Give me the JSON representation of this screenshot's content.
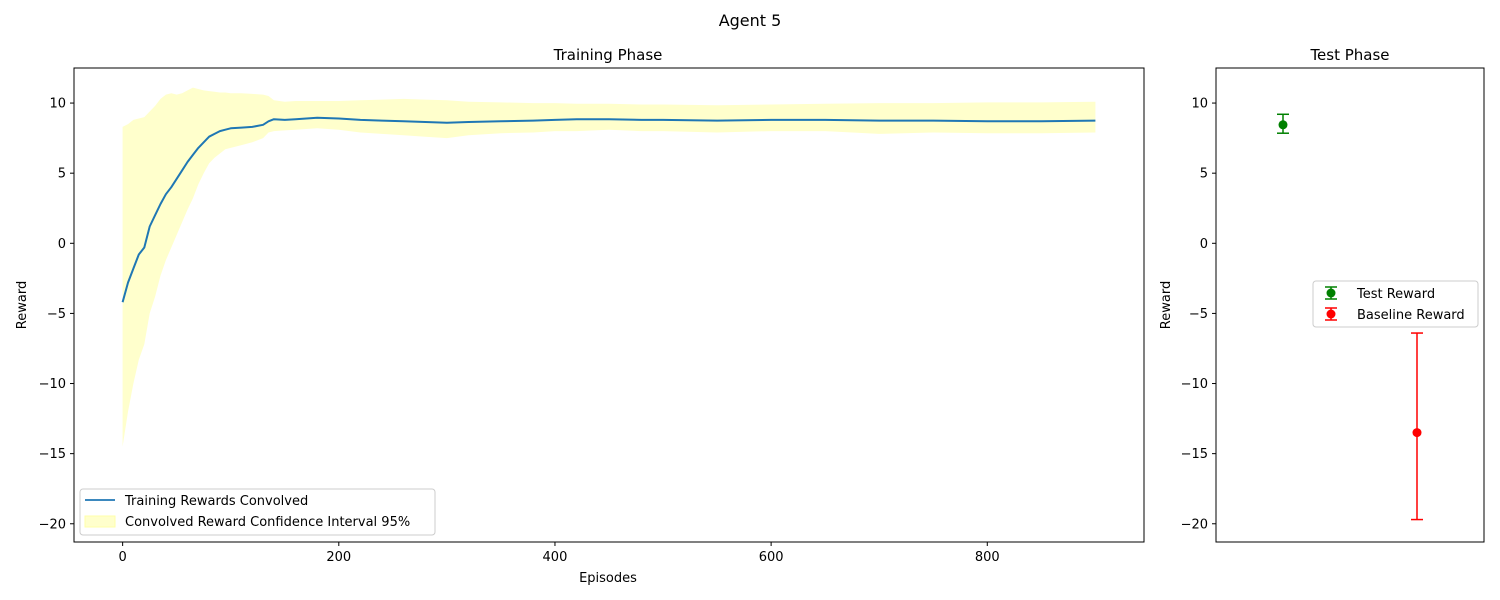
{
  "figure_title": "Agent 5",
  "chart_data": [
    {
      "type": "line",
      "title": "Training Phase",
      "xlabel": "Episodes",
      "ylabel": "Reward",
      "xlim": [
        -45,
        945
      ],
      "ylim": [
        -21.3,
        12.5
      ],
      "xticks": [
        0,
        200,
        400,
        600,
        800
      ],
      "yticks": [
        -20,
        -15,
        -10,
        -5,
        0,
        5,
        10
      ],
      "legend_position": "bottom-left",
      "series": [
        {
          "name": "Training Rewards Convolved",
          "color": "#1f77b4",
          "x": [
            0,
            5,
            10,
            15,
            20,
            25,
            30,
            35,
            40,
            45,
            50,
            55,
            60,
            65,
            70,
            75,
            80,
            85,
            90,
            95,
            100,
            110,
            120,
            130,
            135,
            140,
            150,
            160,
            170,
            180,
            200,
            220,
            240,
            260,
            280,
            300,
            320,
            350,
            380,
            400,
            420,
            450,
            480,
            500,
            550,
            600,
            650,
            700,
            750,
            800,
            850,
            900
          ],
          "y": [
            -4.2,
            -2.8,
            -1.8,
            -0.8,
            -0.3,
            1.2,
            2.0,
            2.8,
            3.5,
            4.0,
            4.6,
            5.2,
            5.8,
            6.3,
            6.8,
            7.2,
            7.6,
            7.8,
            8.0,
            8.1,
            8.2,
            8.25,
            8.3,
            8.45,
            8.7,
            8.85,
            8.8,
            8.85,
            8.9,
            8.95,
            8.9,
            8.8,
            8.75,
            8.7,
            8.65,
            8.6,
            8.65,
            8.7,
            8.75,
            8.8,
            8.85,
            8.85,
            8.8,
            8.8,
            8.75,
            8.8,
            8.8,
            8.75,
            8.75,
            8.7,
            8.7,
            8.75
          ]
        },
        {
          "name": "Convolved Reward Confidence Interval 95%",
          "type": "area",
          "color": "#ffffcc",
          "x": [
            0,
            5,
            10,
            15,
            20,
            25,
            30,
            35,
            40,
            45,
            50,
            55,
            60,
            65,
            70,
            75,
            80,
            85,
            90,
            95,
            100,
            110,
            120,
            130,
            135,
            140,
            150,
            160,
            170,
            180,
            200,
            220,
            240,
            260,
            280,
            300,
            320,
            350,
            380,
            400,
            420,
            450,
            480,
            500,
            550,
            600,
            650,
            700,
            750,
            800,
            850,
            900
          ],
          "lower": [
            -14.5,
            -12.0,
            -10.0,
            -8.3,
            -7.2,
            -5.0,
            -3.8,
            -2.3,
            -1.2,
            -0.3,
            0.6,
            1.5,
            2.4,
            3.2,
            4.2,
            5.0,
            5.7,
            6.1,
            6.4,
            6.7,
            6.8,
            7.0,
            7.2,
            7.5,
            7.9,
            8.0,
            8.05,
            8.1,
            8.15,
            8.2,
            8.1,
            7.9,
            7.8,
            7.7,
            7.6,
            7.5,
            7.7,
            7.85,
            7.9,
            8.0,
            8.0,
            8.1,
            8.0,
            8.0,
            7.9,
            8.0,
            8.0,
            7.8,
            7.9,
            7.85,
            7.85,
            7.9
          ],
          "upper": [
            8.3,
            8.5,
            8.8,
            8.9,
            9.0,
            9.4,
            9.8,
            10.3,
            10.6,
            10.7,
            10.6,
            10.7,
            10.9,
            11.1,
            11.0,
            10.9,
            10.85,
            10.8,
            10.75,
            10.75,
            10.7,
            10.7,
            10.65,
            10.6,
            10.5,
            10.2,
            10.1,
            10.15,
            10.15,
            10.15,
            10.15,
            10.2,
            10.25,
            10.3,
            10.25,
            10.2,
            10.1,
            10.05,
            10.0,
            10.0,
            9.95,
            9.95,
            9.9,
            9.9,
            9.85,
            9.9,
            9.95,
            10.0,
            10.0,
            10.05,
            10.05,
            10.1
          ]
        }
      ]
    },
    {
      "type": "errorbar",
      "title": "Test Phase",
      "xlabel": "",
      "ylabel": "Reward",
      "xlim": [
        -0.5,
        1.5
      ],
      "ylim": [
        -21.3,
        12.5
      ],
      "yticks": [
        -20,
        -15,
        -10,
        -5,
        0,
        5,
        10
      ],
      "legend_position": "center-right",
      "series": [
        {
          "name": "Test Reward",
          "color": "#008000",
          "x": 0,
          "y": 8.45,
          "err_low": 7.85,
          "err_high": 9.2
        },
        {
          "name": "Baseline Reward",
          "color": "#ff0000",
          "x": 1,
          "y": -13.5,
          "err_low": -19.7,
          "err_high": -6.4
        }
      ]
    }
  ]
}
